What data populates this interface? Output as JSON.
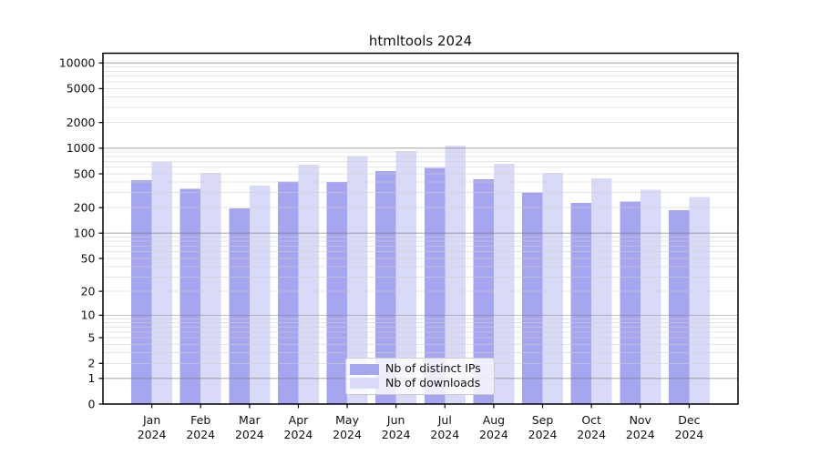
{
  "chart_data": {
    "type": "bar",
    "title": "htmltools 2024",
    "categories": [
      "Jan",
      "Feb",
      "Mar",
      "Apr",
      "May",
      "Jun",
      "Jul",
      "Aug",
      "Sep",
      "Oct",
      "Nov",
      "Dec"
    ],
    "year_label": "2024",
    "series": [
      {
        "name": "Nb of distinct IPs",
        "color": "#a6a6f0",
        "values": [
          420,
          335,
          197,
          408,
          400,
          540,
          590,
          432,
          303,
          228,
          237,
          186
        ]
      },
      {
        "name": "Nb of downloads",
        "color": "#d9d9f8",
        "values": [
          690,
          513,
          365,
          640,
          813,
          925,
          1070,
          655,
          513,
          441,
          326,
          266
        ]
      }
    ],
    "yscale": "log10(1+y)",
    "y_ticks": [
      0,
      1,
      2,
      5,
      10,
      20,
      50,
      100,
      200,
      500,
      1000,
      2000,
      5000,
      10000
    ],
    "ylim": [
      0,
      13000
    ],
    "xlabel": "",
    "ylabel": "",
    "grid": true,
    "legend_position": "lower center"
  },
  "colors": {
    "bar_distinct_ips": "#a6a6f0",
    "bar_downloads": "#d9d9f8",
    "major_gridline": "#c6c6c6",
    "minor_gridline": "#e9e9e9",
    "axis_frame": "#000000",
    "text": "#111111"
  }
}
